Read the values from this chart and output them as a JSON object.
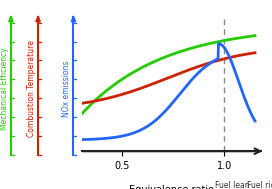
{
  "title": "",
  "xlabel": "Equivalence ratio",
  "x_range": [
    0.3,
    1.15
  ],
  "x_ticks": [
    0.5,
    1.0
  ],
  "x_tick_labels": [
    "0.5",
    "1.0"
  ],
  "vertical_line_x": 1.0,
  "fuel_lean_label": "Fuel lean",
  "fuel_rich_label": "Fuel rich",
  "green_label": "Mechanical Efficiency",
  "red_label": "Combustion Temperature",
  "blue_label": "NOx emissions",
  "green_color": "#22cc00",
  "red_color": "#cc2200",
  "blue_color": "#2266ff",
  "axis_color": "#333333",
  "bg_color": "#ffffff",
  "vline_color": "#888888"
}
